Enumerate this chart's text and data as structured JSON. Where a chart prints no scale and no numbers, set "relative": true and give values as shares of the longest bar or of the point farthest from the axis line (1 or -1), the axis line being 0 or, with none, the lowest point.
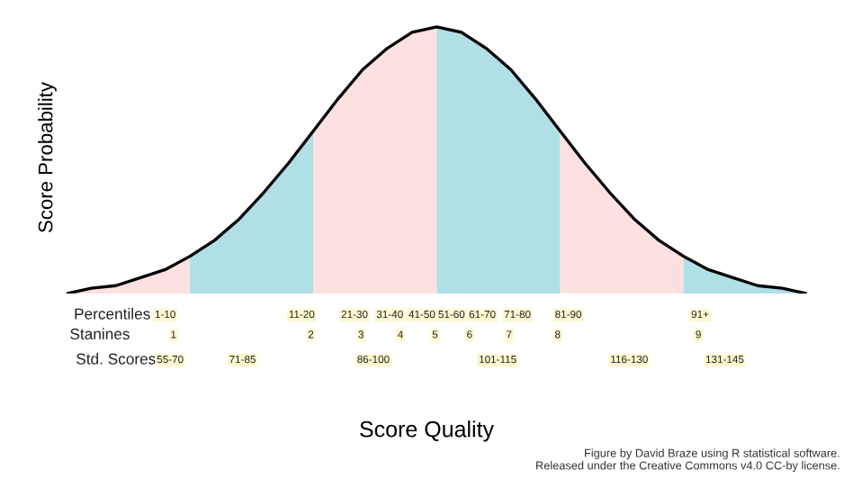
{
  "chart_data": {
    "type": "area",
    "relative": true,
    "ylabel": "Score Probability",
    "tick_labels": false,
    "marker": "none",
    "line_style": "solid",
    "categories": [
      null,
      null,
      null,
      null,
      null,
      null,
      null,
      null,
      null,
      null,
      null,
      null,
      null,
      null,
      null,
      null,
      null,
      null,
      null,
      null,
      null,
      null,
      null,
      null,
      null,
      null,
      null,
      null,
      null,
      null,
      null
    ],
    "series": [
      {
        "color": "#fde1e0",
        "values": [
          0,
          0.02,
          0.03,
          0.06,
          0.09,
          0.14,
          null,
          null,
          null,
          null,
          null,
          null,
          null,
          null,
          null,
          null,
          null,
          null,
          null,
          null,
          null,
          null,
          null,
          null,
          null,
          null,
          null,
          null,
          null,
          null,
          null
        ]
      },
      {
        "color": "#b0dfe5",
        "values": [
          null,
          null,
          null,
          null,
          null,
          0.14,
          0.2,
          0.28,
          0.38,
          0.49,
          0.61,
          null,
          null,
          null,
          null,
          null,
          null,
          null,
          null,
          null,
          null,
          null,
          null,
          null,
          null,
          null,
          null,
          null,
          null,
          null,
          null
        ]
      },
      {
        "color": "#fde1e0",
        "values": [
          null,
          null,
          null,
          null,
          null,
          null,
          null,
          null,
          null,
          null,
          0.61,
          0.73,
          0.84,
          0.92,
          0.98,
          1,
          null,
          null,
          null,
          null,
          null,
          null,
          null,
          null,
          null,
          null,
          null,
          null,
          null,
          null,
          null
        ]
      },
      {
        "color": "#b0dfe5",
        "values": [
          null,
          null,
          null,
          null,
          null,
          null,
          null,
          null,
          null,
          null,
          null,
          null,
          null,
          null,
          null,
          1,
          0.98,
          0.92,
          0.84,
          0.73,
          0.61,
          null,
          null,
          null,
          null,
          null,
          null,
          null,
          null,
          null,
          null
        ]
      },
      {
        "color": "#fde1e0",
        "values": [
          null,
          null,
          null,
          null,
          null,
          null,
          null,
          null,
          null,
          null,
          null,
          null,
          null,
          null,
          null,
          null,
          null,
          null,
          null,
          null,
          0.61,
          0.49,
          0.38,
          0.28,
          0.2,
          0.14,
          null,
          null,
          null,
          null,
          null
        ]
      },
      {
        "color": "#b0dfe5",
        "values": [
          null,
          null,
          null,
          null,
          null,
          null,
          null,
          null,
          null,
          null,
          null,
          null,
          null,
          null,
          null,
          null,
          null,
          null,
          null,
          null,
          null,
          null,
          null,
          null,
          null,
          0.14,
          0.09,
          0.06,
          0.03,
          0.02,
          0
        ]
      },
      {
        "type": "line",
        "color": "#000000",
        "values": [
          0,
          0.02,
          0.03,
          0.06,
          0.09,
          0.14,
          0.2,
          0.28,
          0.38,
          0.49,
          0.61,
          0.73,
          0.84,
          0.92,
          0.98,
          1,
          0.98,
          0.92,
          0.84,
          0.73,
          0.61,
          0.49,
          0.38,
          0.28,
          0.2,
          0.14,
          0.09,
          0.06,
          0.03,
          0.02,
          0
        ]
      }
    ],
    "annotations": [
      "Percentiles",
      "Stanines",
      "Std. Scores",
      "1-10",
      "11-20",
      "21-30",
      "31-40",
      "41-50",
      "51-60",
      "61-70",
      "71-80",
      "81-90",
      "91+",
      "1",
      "2",
      "3",
      "4",
      "5",
      "6",
      "7",
      "8",
      "9",
      "55-70",
      "71-85",
      "86-100",
      "101-115",
      "116-130",
      "131-145",
      "Score Quality",
      "Figure by David Braze using R statistical software.\nReleased under the Creative Commons v4.0 CC-by license."
    ]
  }
}
